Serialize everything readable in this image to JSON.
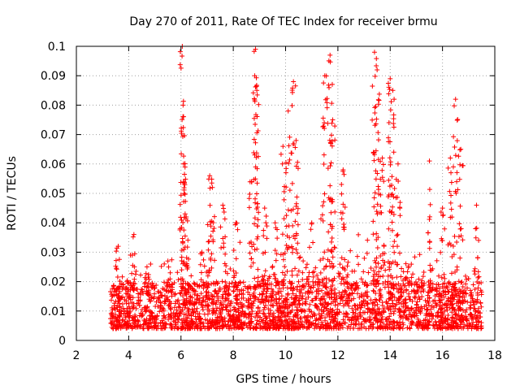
{
  "chart_data": {
    "type": "scatter",
    "title": "Day 270 of 2011, Rate Of TEC Index for receiver brmu",
    "xlabel": "GPS time / hours",
    "ylabel": "ROTI / TECUs",
    "xlim": [
      2,
      18
    ],
    "ylim": [
      0,
      0.1
    ],
    "xticks": [
      "2",
      "4",
      "6",
      "8",
      "10",
      "12",
      "14",
      "16",
      "18"
    ],
    "yticks": [
      "0",
      "0.01",
      "0.02",
      "0.03",
      "0.04",
      "0.05",
      "0.06",
      "0.07",
      "0.08",
      "0.09",
      "0.1"
    ],
    "grid": true,
    "marker": "+",
    "series_color": "#ff0000",
    "series": [
      {
        "name": "ROTI",
        "x_range": [
          3.3,
          17.5
        ],
        "baseline_range": [
          0.004,
          0.02
        ],
        "spikes": [
          {
            "x": 3.6,
            "y": 0.032
          },
          {
            "x": 4.2,
            "y": 0.036
          },
          {
            "x": 4.7,
            "y": 0.025
          },
          {
            "x": 5.5,
            "y": 0.027
          },
          {
            "x": 6.05,
            "y": 0.1
          },
          {
            "x": 6.08,
            "y": 0.08
          },
          {
            "x": 6.1,
            "y": 0.06
          },
          {
            "x": 6.2,
            "y": 0.042
          },
          {
            "x": 6.8,
            "y": 0.03
          },
          {
            "x": 7.1,
            "y": 0.056
          },
          {
            "x": 7.2,
            "y": 0.052
          },
          {
            "x": 7.6,
            "y": 0.046
          },
          {
            "x": 8.1,
            "y": 0.04
          },
          {
            "x": 8.7,
            "y": 0.054
          },
          {
            "x": 8.85,
            "y": 0.099
          },
          {
            "x": 8.9,
            "y": 0.085
          },
          {
            "x": 9.2,
            "y": 0.045
          },
          {
            "x": 9.6,
            "y": 0.04
          },
          {
            "x": 9.9,
            "y": 0.066
          },
          {
            "x": 10.1,
            "y": 0.078
          },
          {
            "x": 10.3,
            "y": 0.088
          },
          {
            "x": 10.4,
            "y": 0.068
          },
          {
            "x": 11.0,
            "y": 0.04
          },
          {
            "x": 11.5,
            "y": 0.09
          },
          {
            "x": 11.7,
            "y": 0.097
          },
          {
            "x": 11.8,
            "y": 0.075
          },
          {
            "x": 12.2,
            "y": 0.058
          },
          {
            "x": 13.4,
            "y": 0.098
          },
          {
            "x": 13.5,
            "y": 0.092
          },
          {
            "x": 13.7,
            "y": 0.062
          },
          {
            "x": 14.0,
            "y": 0.089
          },
          {
            "x": 14.1,
            "y": 0.085
          },
          {
            "x": 14.3,
            "y": 0.06
          },
          {
            "x": 15.5,
            "y": 0.061
          },
          {
            "x": 16.0,
            "y": 0.045
          },
          {
            "x": 16.3,
            "y": 0.062
          },
          {
            "x": 16.5,
            "y": 0.082
          },
          {
            "x": 16.7,
            "y": 0.065
          },
          {
            "x": 17.3,
            "y": 0.046
          }
        ]
      }
    ]
  }
}
